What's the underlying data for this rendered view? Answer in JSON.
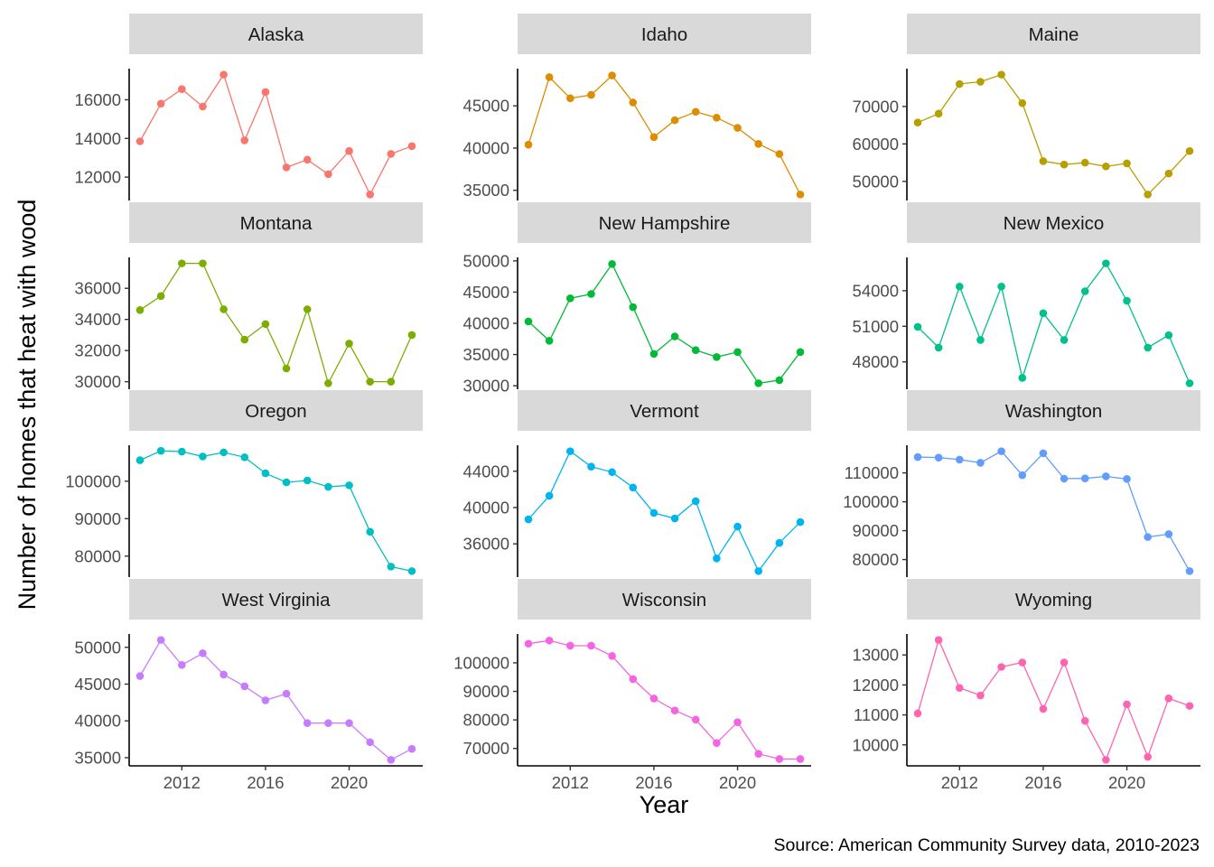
{
  "chart_data": {
    "type": "line",
    "facet_layout": "4 rows x 3 columns",
    "xlabel": "Year",
    "ylabel": "Number of homes that heat with wood",
    "caption": "Source: American Community Survey data, 2010-2023",
    "grid": false,
    "legend": "none",
    "x_ticks": [
      2012,
      2016,
      2020
    ],
    "xlim": [
      2010,
      2023
    ],
    "panels": [
      {
        "name": "Alaska",
        "color": "#F8766D",
        "yticks": [
          12000,
          14000,
          16000
        ],
        "ylim": [
          11100,
          17300
        ],
        "x": [
          2010,
          2011,
          2012,
          2013,
          2014,
          2015,
          2016,
          2017,
          2018,
          2019,
          2020,
          2021,
          2022,
          2023
        ],
        "y": [
          13850,
          15800,
          16550,
          15650,
          17300,
          13900,
          16400,
          12500,
          12900,
          12150,
          13350,
          11100,
          13200,
          13600
        ]
      },
      {
        "name": "Idaho",
        "color": "#DE8C00",
        "yticks": [
          35000,
          40000,
          45000
        ],
        "ylim": [
          34500,
          48700
        ],
        "x": [
          2010,
          2011,
          2012,
          2013,
          2014,
          2015,
          2016,
          2017,
          2018,
          2019,
          2020,
          2021,
          2022,
          2023
        ],
        "y": [
          40400,
          48400,
          45900,
          46300,
          48600,
          45400,
          41300,
          43300,
          44300,
          43600,
          42400,
          40500,
          39300,
          34500
        ]
      },
      {
        "name": "Maine",
        "color": "#B79F00",
        "yticks": [
          50000,
          60000,
          70000
        ],
        "ylim": [
          46500,
          78500
        ],
        "x": [
          2010,
          2011,
          2012,
          2013,
          2014,
          2015,
          2016,
          2017,
          2018,
          2019,
          2020,
          2021,
          2022,
          2023
        ],
        "y": [
          65700,
          68100,
          76000,
          76600,
          78500,
          70900,
          55400,
          54500,
          55000,
          54000,
          54800,
          46500,
          52100,
          58100
        ]
      },
      {
        "name": "Montana",
        "color": "#7CAE00",
        "yticks": [
          30000,
          32000,
          34000,
          36000
        ],
        "ylim": [
          29900,
          37600
        ],
        "x": [
          2010,
          2011,
          2012,
          2013,
          2014,
          2015,
          2016,
          2017,
          2018,
          2019,
          2020,
          2021,
          2022,
          2023
        ],
        "y": [
          34600,
          35500,
          37600,
          37600,
          34650,
          32700,
          33700,
          30850,
          34650,
          29900,
          32450,
          30000,
          30000,
          33000
        ]
      },
      {
        "name": "New Hampshire",
        "color": "#00BA38",
        "yticks": [
          30000,
          35000,
          40000,
          45000,
          50000
        ],
        "ylim": [
          30400,
          49600
        ],
        "x": [
          2010,
          2011,
          2012,
          2013,
          2014,
          2015,
          2016,
          2017,
          2018,
          2019,
          2020,
          2021,
          2022,
          2023
        ],
        "y": [
          40300,
          37200,
          44000,
          44700,
          49500,
          42600,
          35100,
          37900,
          35700,
          34600,
          35400,
          30400,
          30900,
          35400
        ]
      },
      {
        "name": "New Mexico",
        "color": "#00C08B",
        "yticks": [
          48000,
          51000,
          54000
        ],
        "ylim": [
          46200,
          56300
        ],
        "x": [
          2010,
          2011,
          2012,
          2013,
          2014,
          2015,
          2016,
          2017,
          2018,
          2019,
          2020,
          2021,
          2022,
          2023
        ],
        "y": [
          50950,
          49200,
          54350,
          49850,
          54350,
          46650,
          52100,
          49850,
          53950,
          56300,
          53150,
          49200,
          50250,
          46200
        ]
      },
      {
        "name": "Oregon",
        "color": "#00BFC4",
        "yticks": [
          80000,
          90000,
          100000
        ],
        "ylim": [
          76000,
          108000
        ],
        "x": [
          2010,
          2011,
          2012,
          2013,
          2014,
          2015,
          2016,
          2017,
          2018,
          2019,
          2020,
          2021,
          2022,
          2023
        ],
        "y": [
          105600,
          108100,
          107900,
          106600,
          107700,
          106400,
          102100,
          99700,
          100200,
          98500,
          98900,
          86500,
          77200,
          76000
        ]
      },
      {
        "name": "Vermont",
        "color": "#00B4F0",
        "yticks": [
          36000,
          40000,
          44000
        ],
        "ylim": [
          33000,
          46200
        ],
        "x": [
          2010,
          2011,
          2012,
          2013,
          2014,
          2015,
          2016,
          2017,
          2018,
          2019,
          2020,
          2021,
          2022,
          2023
        ],
        "y": [
          38700,
          41300,
          46200,
          44500,
          43900,
          42200,
          39400,
          38800,
          40700,
          34400,
          37900,
          33000,
          36100,
          38400
        ]
      },
      {
        "name": "Washington",
        "color": "#619CFF",
        "yticks": [
          80000,
          90000,
          100000,
          110000
        ],
        "ylim": [
          76000,
          117500
        ],
        "x": [
          2010,
          2011,
          2012,
          2013,
          2014,
          2015,
          2016,
          2017,
          2018,
          2019,
          2020,
          2021,
          2022,
          2023
        ],
        "y": [
          115500,
          115300,
          114600,
          113500,
          117500,
          109200,
          116800,
          108000,
          108100,
          108800,
          107900,
          87800,
          88800,
          76000
        ]
      },
      {
        "name": "West Virginia",
        "color": "#C77CFF",
        "yticks": [
          35000,
          40000,
          45000,
          50000
        ],
        "ylim": [
          34700,
          51000
        ],
        "x": [
          2010,
          2011,
          2012,
          2013,
          2014,
          2015,
          2016,
          2017,
          2018,
          2019,
          2020,
          2021,
          2022,
          2023
        ],
        "y": [
          46100,
          51000,
          47600,
          49200,
          46300,
          44700,
          42800,
          43700,
          39700,
          39700,
          39700,
          37100,
          34700,
          36200
        ]
      },
      {
        "name": "Wisconsin",
        "color": "#F564E3",
        "yticks": [
          70000,
          80000,
          90000,
          100000
        ],
        "ylim": [
          66000,
          108000
        ],
        "x": [
          2010,
          2011,
          2012,
          2013,
          2014,
          2015,
          2016,
          2017,
          2018,
          2019,
          2020,
          2021,
          2022,
          2023
        ],
        "y": [
          106700,
          107800,
          106000,
          106000,
          102400,
          94300,
          87500,
          83300,
          80100,
          71900,
          79200,
          68100,
          66300,
          66300
        ]
      },
      {
        "name": "Wyoming",
        "color": "#FF64B0",
        "yticks": [
          10000,
          11000,
          12000,
          13000
        ],
        "ylim": [
          9500,
          13500
        ],
        "x": [
          2010,
          2011,
          2012,
          2013,
          2014,
          2015,
          2016,
          2017,
          2018,
          2019,
          2020,
          2021,
          2022,
          2023
        ],
        "y": [
          11050,
          13500,
          11900,
          11650,
          12600,
          12750,
          11200,
          12750,
          10800,
          9500,
          11350,
          9600,
          11550,
          11300
        ]
      }
    ]
  }
}
